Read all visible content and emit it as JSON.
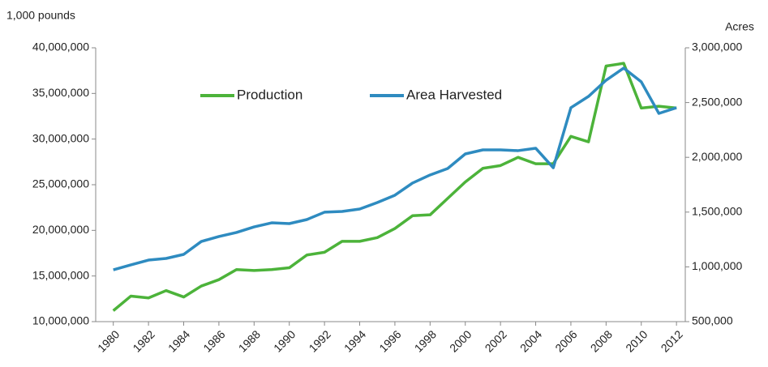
{
  "chart_data": {
    "type": "line",
    "y_label": "1,000 pounds",
    "y2_label": "Acres",
    "x": [
      1980,
      1981,
      1982,
      1983,
      1984,
      1985,
      1986,
      1987,
      1988,
      1989,
      1990,
      1991,
      1992,
      1993,
      1994,
      1995,
      1996,
      1997,
      1998,
      1999,
      2000,
      2001,
      2002,
      2003,
      2004,
      2005,
      2006,
      2007,
      2008,
      2009,
      2010,
      2011,
      2012
    ],
    "xlim": [
      1979,
      2012.5
    ],
    "xticks": [
      1980,
      1982,
      1984,
      1986,
      1988,
      1990,
      1992,
      1994,
      1996,
      1998,
      2000,
      2002,
      2004,
      2006,
      2008,
      2010,
      2012
    ],
    "ylim": [
      10000000,
      40000000
    ],
    "yticks": [
      {
        "value": 10000000,
        "label": "10,000,000"
      },
      {
        "value": 15000000,
        "label": "15,000,000"
      },
      {
        "value": 20000000,
        "label": "20,000,000"
      },
      {
        "value": 25000000,
        "label": "25,000,000"
      },
      {
        "value": 30000000,
        "label": "30,000,000"
      },
      {
        "value": 35000000,
        "label": "35,000,000"
      },
      {
        "value": 40000000,
        "label": "40,000,000"
      }
    ],
    "y2lim": [
      500000,
      3000000
    ],
    "y2ticks": [
      {
        "value": 500000,
        "label": "500,000"
      },
      {
        "value": 1000000,
        "label": "1,000,000"
      },
      {
        "value": 1500000,
        "label": "1,500,000"
      },
      {
        "value": 2000000,
        "label": "2,000,000"
      },
      {
        "value": 2500000,
        "label": "2,500,000"
      },
      {
        "value": 3000000,
        "label": "3,000,000"
      }
    ],
    "legend": "top",
    "series": [
      {
        "name": "Production",
        "color": "#4cb33a",
        "axis": "y",
        "values": [
          11200000,
          12800000,
          12600000,
          13400000,
          12700000,
          13900000,
          14600000,
          15700000,
          15600000,
          15700000,
          15900000,
          17300000,
          17600000,
          18800000,
          18800000,
          19200000,
          20200000,
          21600000,
          21700000,
          23500000,
          25300000,
          26800000,
          27100000,
          28000000,
          27300000,
          27300000,
          30300000,
          29700000,
          38000000,
          38300000,
          33400000,
          33600000,
          33400000
        ]
      },
      {
        "name": "Area Harvested",
        "color": "#2e8bc0",
        "axis": "y2",
        "values": [
          973000,
          1018000,
          1062000,
          1077000,
          1114000,
          1232000,
          1277000,
          1314000,
          1365000,
          1402000,
          1395000,
          1432000,
          1499000,
          1506000,
          1528000,
          1587000,
          1654000,
          1765000,
          1839000,
          1898000,
          2031000,
          2068000,
          2068000,
          2061000,
          2083000,
          1905000,
          2453000,
          2556000,
          2704000,
          2815000,
          2689000,
          2401000,
          2453000
        ]
      }
    ]
  }
}
